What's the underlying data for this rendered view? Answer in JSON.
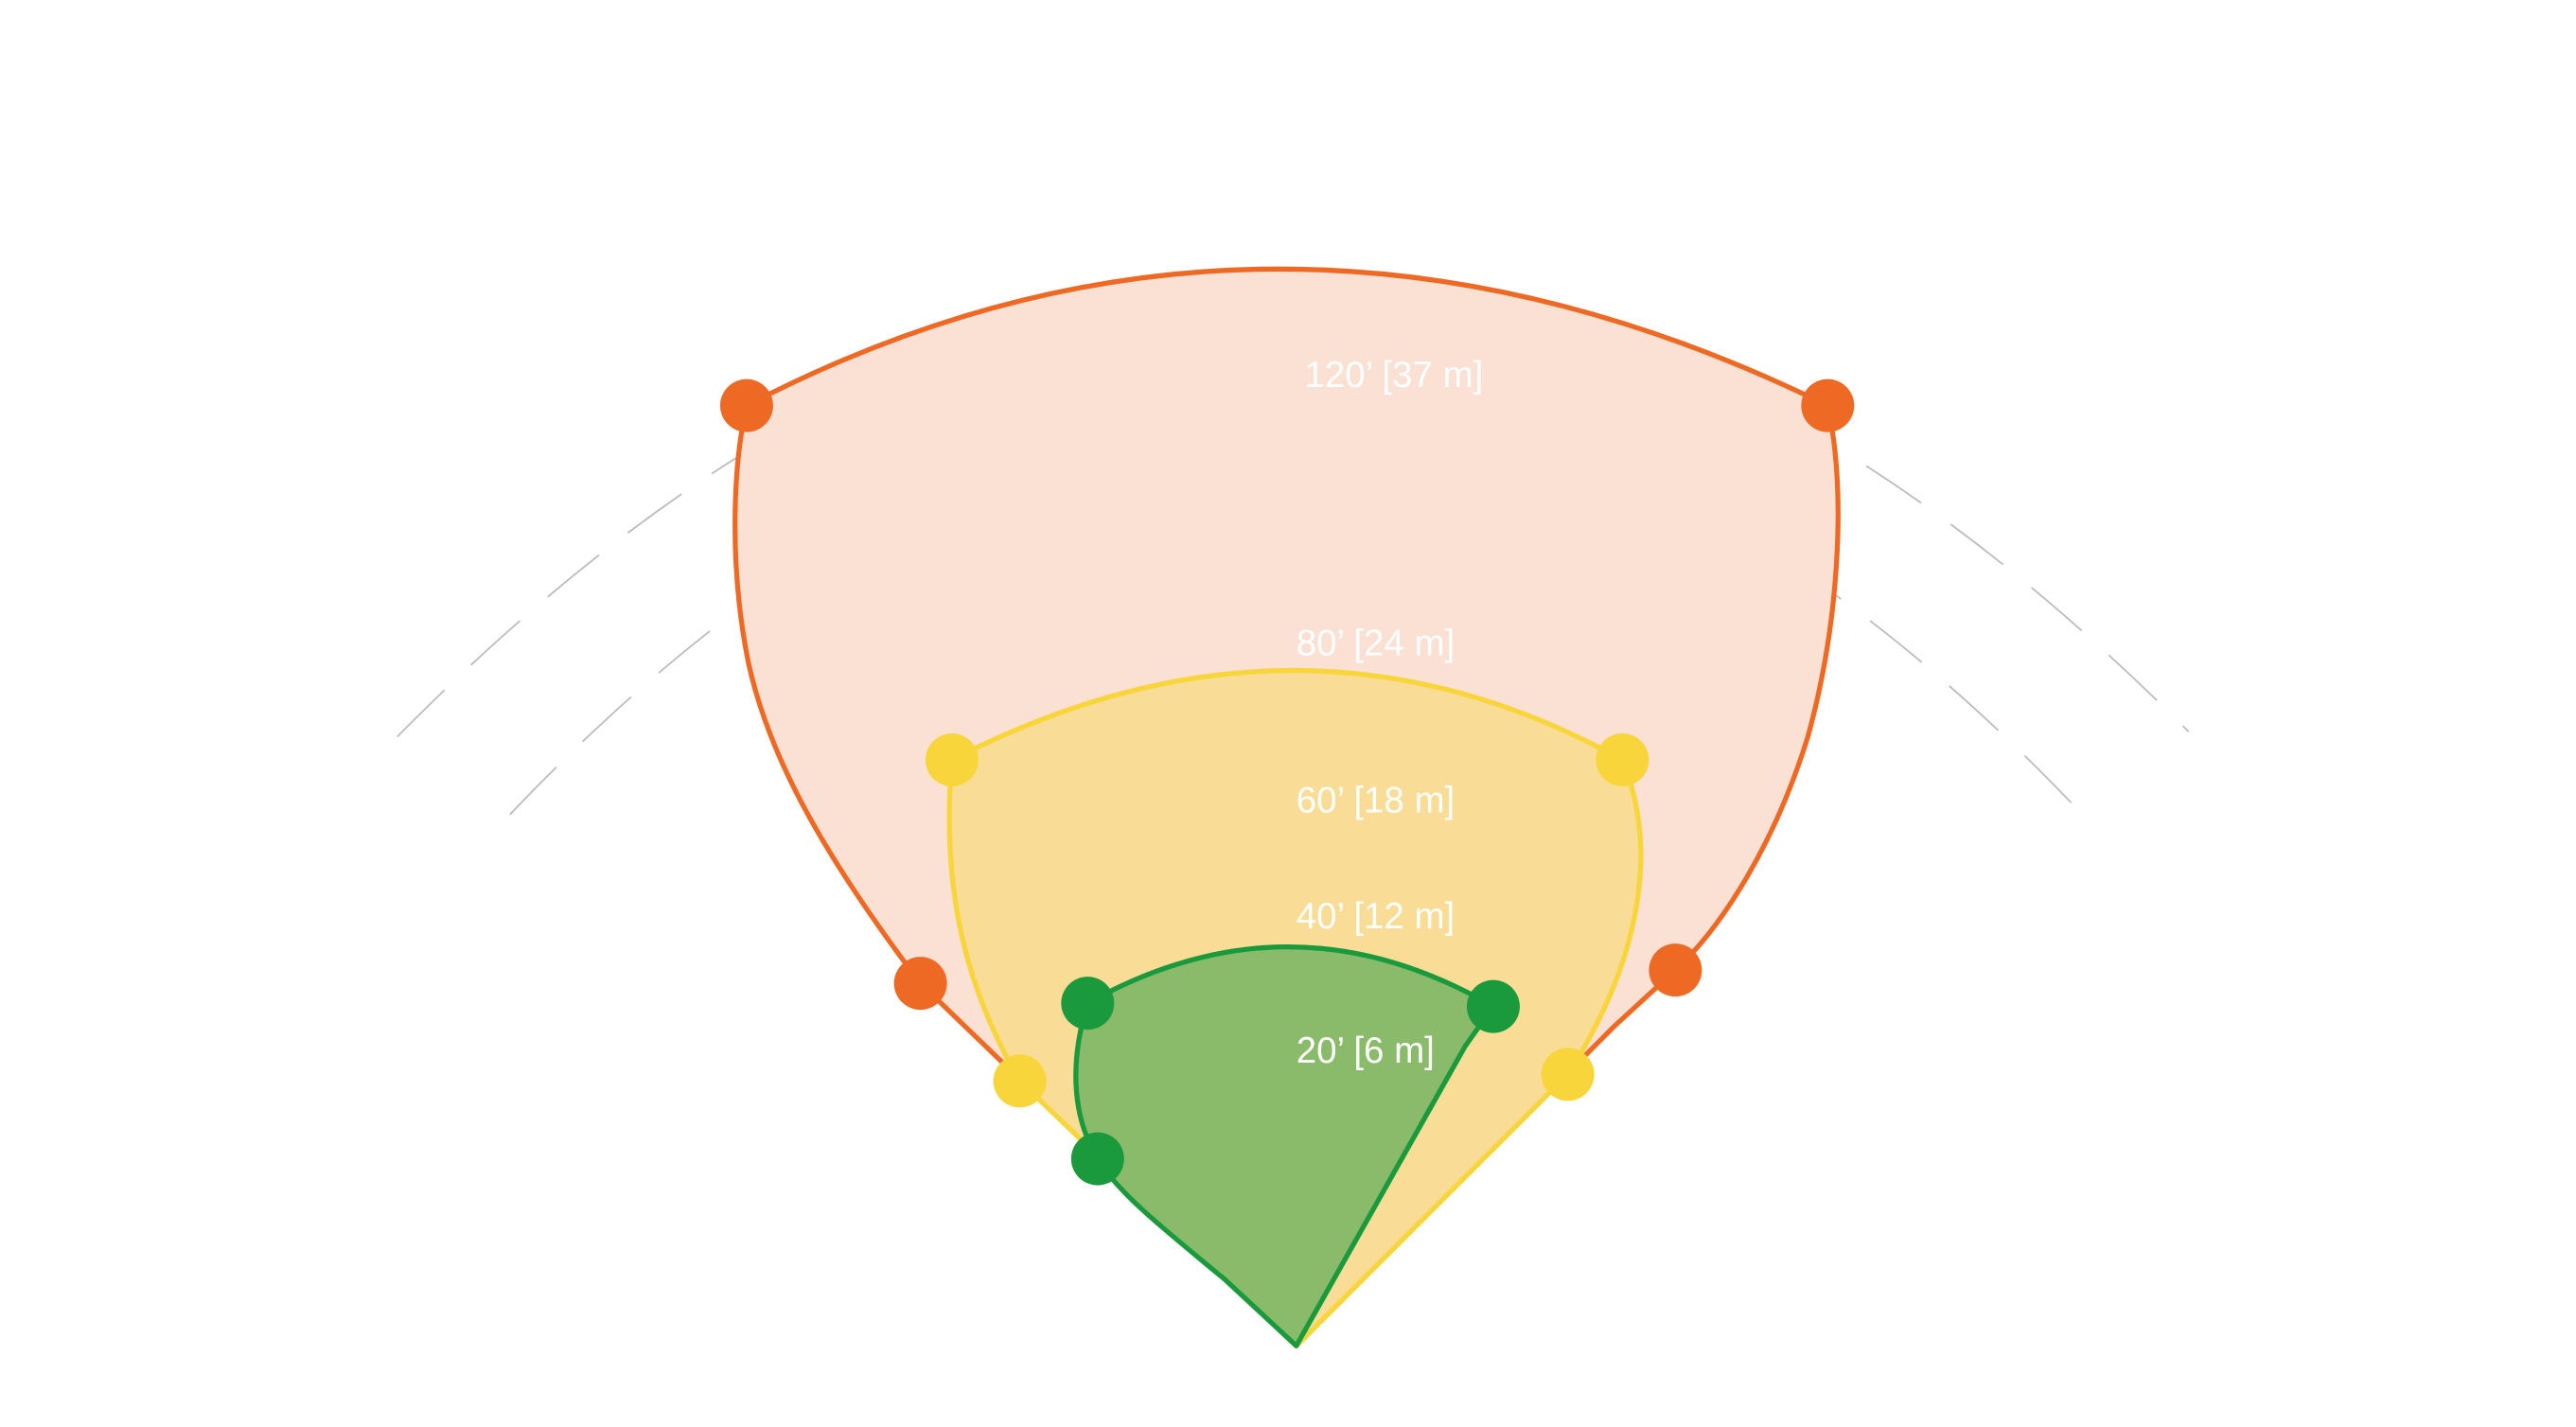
{
  "labels": [
    "120’ [37 m]",
    "80’ [24 m]",
    "60’ [18 m]",
    "40’ [12 m]",
    "20’ [6 m]"
  ]
}
